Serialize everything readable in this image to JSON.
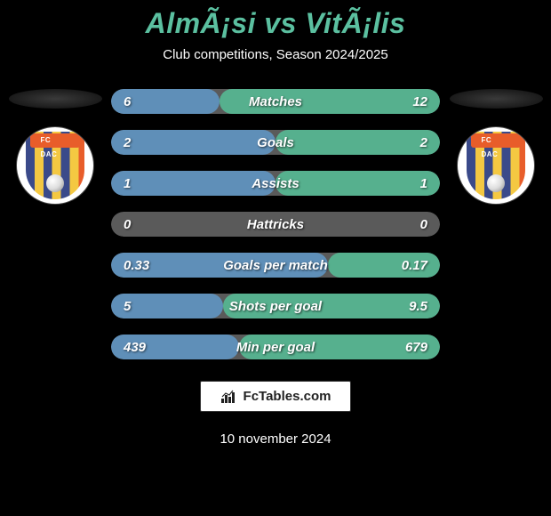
{
  "title": "AlmÃ¡si vs VitÃ¡lis",
  "subtitle": "Club competitions, Season 2024/2025",
  "date": "10 november 2024",
  "brand": {
    "text": "FcTables.com"
  },
  "colors": {
    "title": "#5bc0a0",
    "left_bar": "#5f8fb8",
    "right_bar": "#56b08e",
    "neutral_bar": "#5a5a5a",
    "background": "#000000",
    "text": "#ffffff"
  },
  "player_left": {
    "name": "Almási",
    "club_badge": "fc-dac"
  },
  "player_right": {
    "name": "Vitális",
    "club_badge": "fc-dac"
  },
  "stats": [
    {
      "label": "Matches",
      "left_value": "6",
      "right_value": "12",
      "left_width_pct": 33,
      "right_width_pct": 67
    },
    {
      "label": "Goals",
      "left_value": "2",
      "right_value": "2",
      "left_width_pct": 50,
      "right_width_pct": 50
    },
    {
      "label": "Assists",
      "left_value": "1",
      "right_value": "1",
      "left_width_pct": 50,
      "right_width_pct": 50
    },
    {
      "label": "Hattricks",
      "left_value": "0",
      "right_value": "0",
      "left_width_pct": 0,
      "right_width_pct": 0
    },
    {
      "label": "Goals per match",
      "left_value": "0.33",
      "right_value": "0.17",
      "left_width_pct": 66,
      "right_width_pct": 34
    },
    {
      "label": "Shots per goal",
      "left_value": "5",
      "right_value": "9.5",
      "left_width_pct": 34,
      "right_width_pct": 66
    },
    {
      "label": "Min per goal",
      "left_value": "439",
      "right_value": "679",
      "left_width_pct": 39,
      "right_width_pct": 61
    }
  ]
}
